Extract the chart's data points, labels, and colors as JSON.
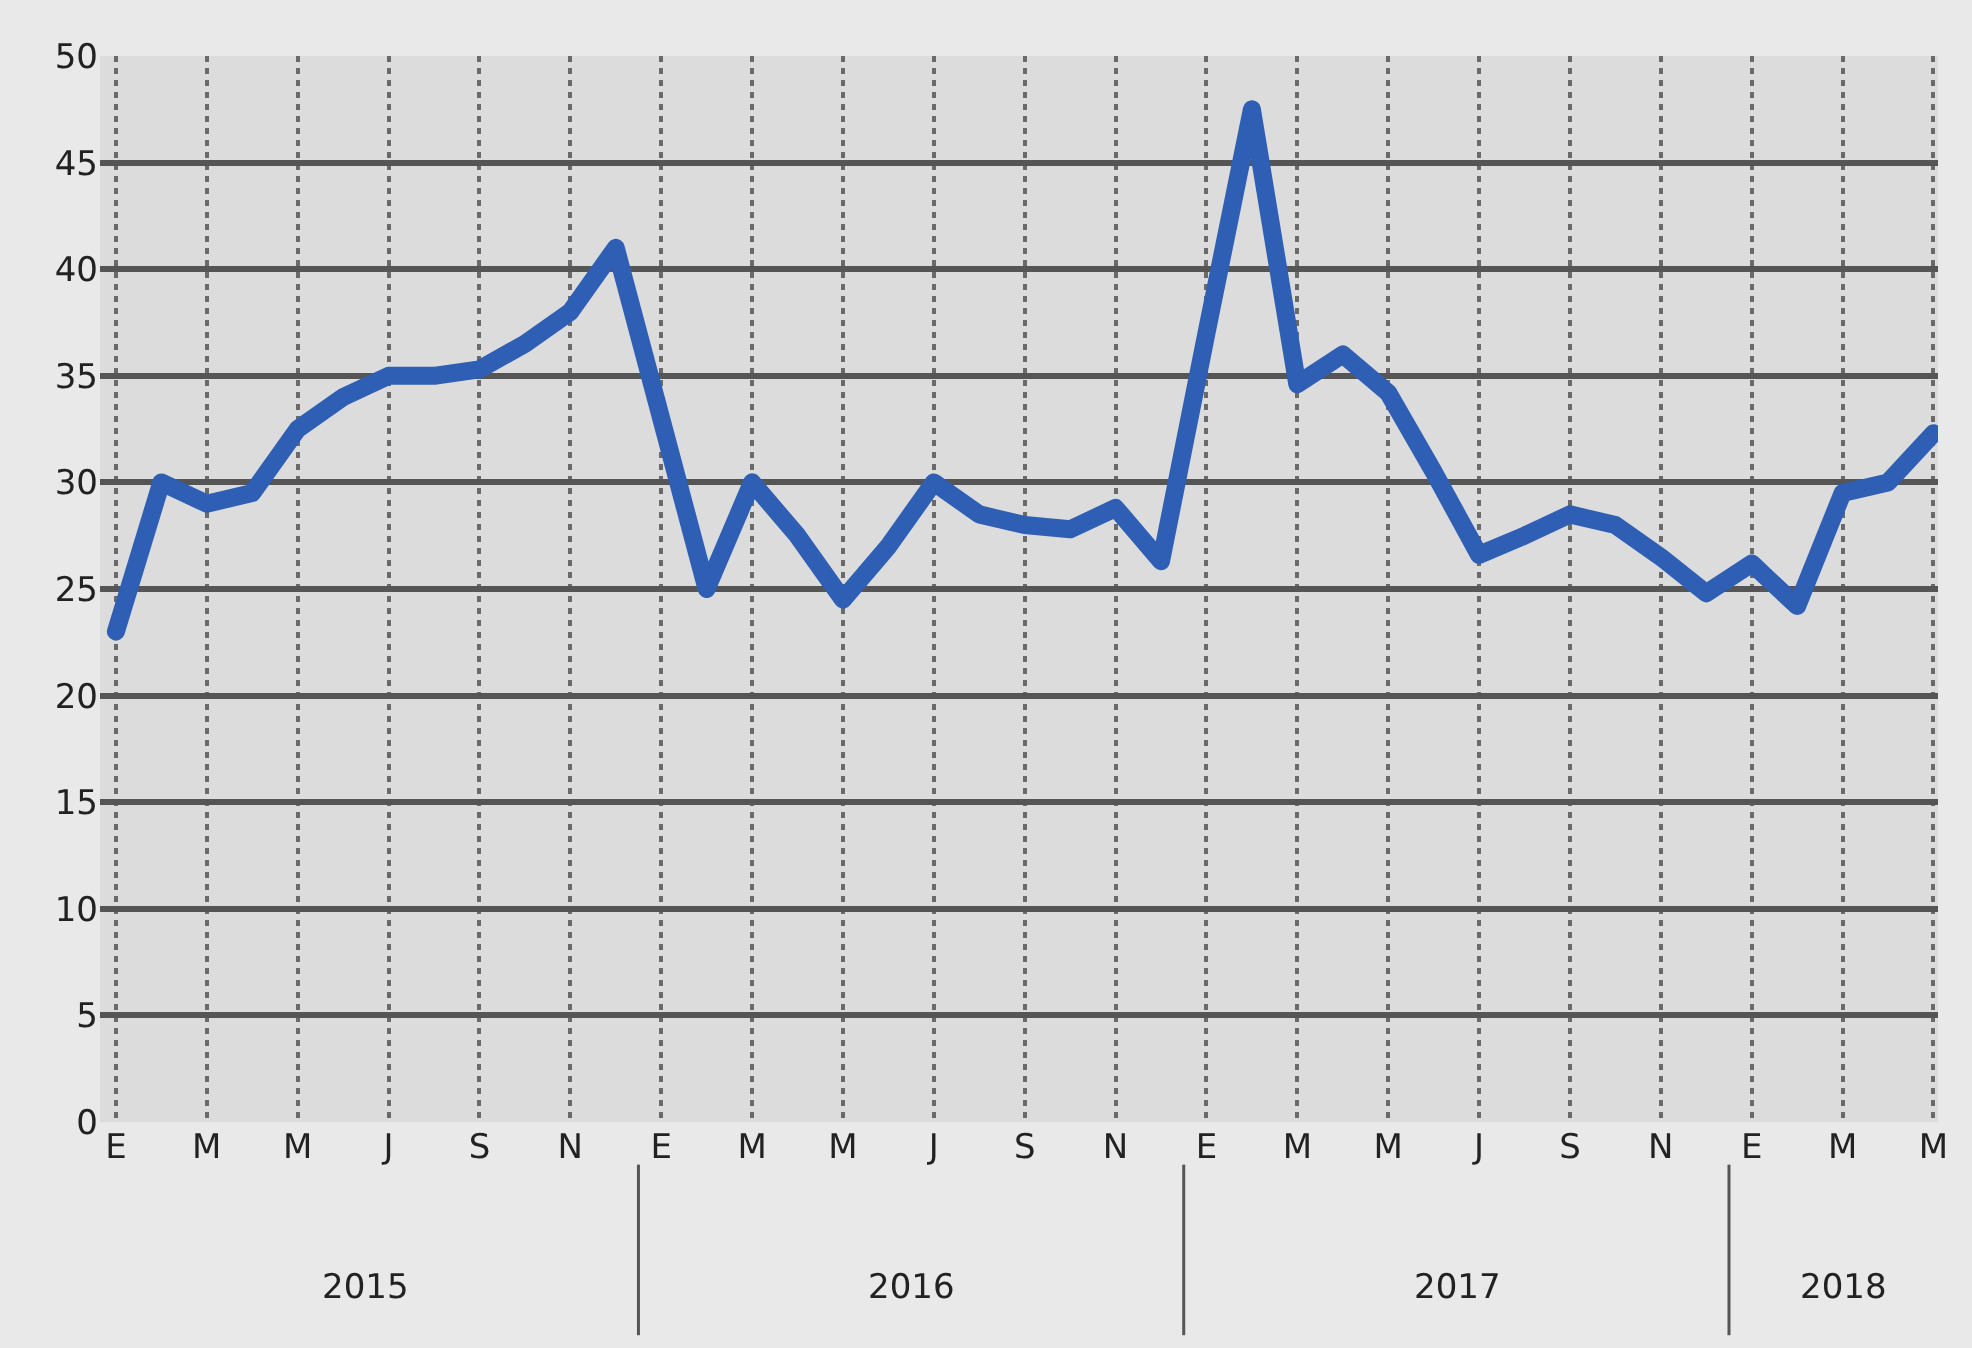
{
  "chart_data": {
    "type": "line",
    "categories": [
      "E",
      null,
      "M",
      null,
      "M",
      null,
      "J",
      null,
      "S",
      null,
      "N",
      null,
      "E",
      null,
      "M",
      null,
      "M",
      null,
      "J",
      null,
      "S",
      null,
      "N",
      null,
      "E",
      null,
      "M",
      null,
      "M",
      null,
      "J",
      null,
      "S",
      null,
      "N",
      null,
      "E",
      null,
      "M",
      null,
      "M"
    ],
    "series": [
      {
        "color": "#2e5fb5",
        "values": [
          23,
          30,
          29,
          29.5,
          32.5,
          34,
          35,
          35,
          35.3,
          36.5,
          38,
          41,
          33,
          25,
          30,
          27.5,
          24.5,
          27,
          30,
          28.5,
          28,
          27.8,
          28.8,
          26.3,
          37,
          47.5,
          34.6,
          36,
          34.2,
          30.5,
          26.6,
          27.5,
          28.5,
          28,
          26.5,
          24.8,
          26.2,
          24.2,
          29.5,
          30,
          32.3
        ]
      }
    ],
    "annotations": [
      "2015",
      "2016",
      "2017",
      "2018"
    ],
    "ylim": [
      0,
      50
    ],
    "yticks": [
      0,
      5,
      10,
      15,
      20,
      25,
      30,
      35,
      40,
      45,
      50
    ],
    "grid": true,
    "line_style": "solid"
  }
}
